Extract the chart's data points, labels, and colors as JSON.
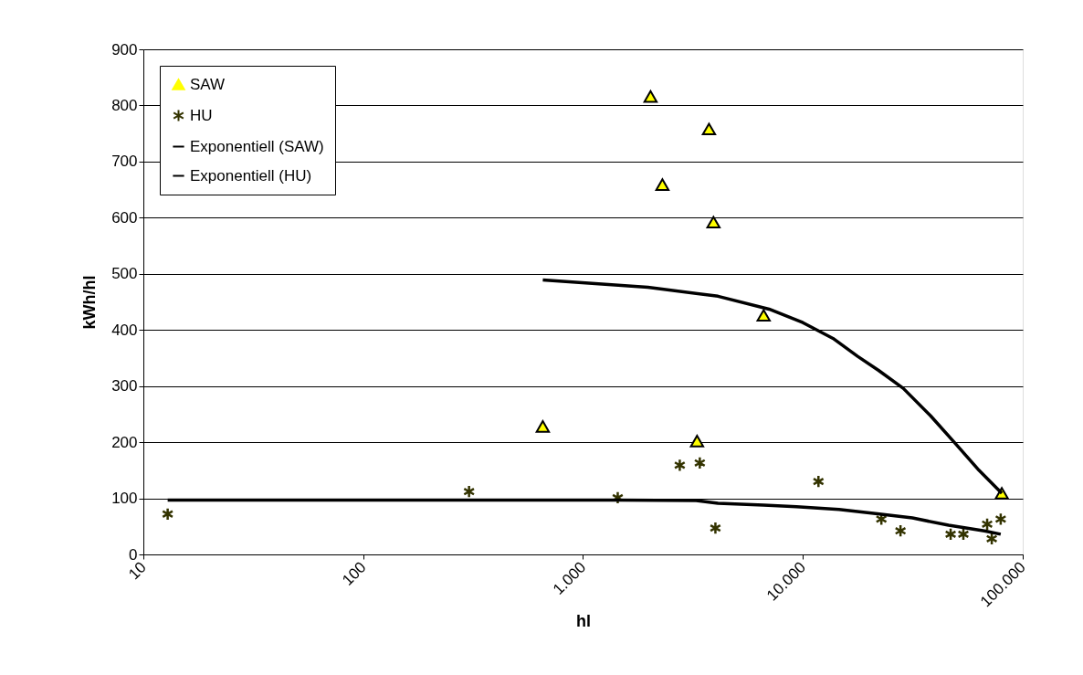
{
  "chart_data": {
    "type": "scatter",
    "xlabel": "hl",
    "ylabel": "kWh/hl",
    "log": "x",
    "xlim": [
      10,
      100000
    ],
    "ylim": [
      0,
      900
    ],
    "xticks": [
      10,
      100,
      {
        "value": 1000,
        "label": "1.000"
      },
      {
        "value": 10000,
        "label": "10.000"
      },
      {
        "value": 100000,
        "label": "100.000"
      }
    ],
    "yticks": [
      0,
      100,
      200,
      300,
      400,
      500,
      600,
      700,
      800,
      900
    ],
    "grid": "y",
    "legend": "top left",
    "series": [
      {
        "name": "SAW",
        "marker": "triangle",
        "color": "#ffff00",
        "x": [
          2028,
          3740,
          2296,
          3920,
          6630,
          656,
          3300,
          80300
        ],
        "values": [
          816,
          758,
          659,
          592,
          426,
          228,
          202,
          109
        ]
      },
      {
        "name": "HU",
        "marker": "cross",
        "color": "#333300",
        "x": [
          12.9,
          303,
          1438,
          2754,
          3397,
          4000,
          11770,
          22750,
          27800,
          47000,
          53700,
          68900,
          72300,
          79400
        ],
        "values": [
          72,
          112,
          101,
          159,
          163,
          47,
          130,
          63,
          42,
          36,
          36,
          54,
          28,
          63
        ]
      },
      {
        "name": "Exponentiell (SAW)",
        "type": "line",
        "marker": "none",
        "color": "#000000",
        "x": [
          656,
          1972,
          4110,
          7020,
          10000,
          13700,
          17740,
          22090,
          28600,
          38100,
          49300,
          63200,
          80300
        ],
        "values": [
          489,
          476,
          460,
          437,
          413,
          385,
          353,
          328,
          296,
          247,
          198,
          150,
          109
        ]
      },
      {
        "name": "Exponentiell (HU)",
        "type": "line",
        "marker": "none",
        "color": "#000000",
        "x": [
          12.9,
          303,
          1438,
          3270,
          4110,
          6630,
          9350,
          14600,
          21400,
          31500,
          46000,
          67000,
          79400
        ],
        "values": [
          97,
          97,
          97,
          96,
          91,
          88,
          85,
          80,
          73,
          65,
          52,
          42,
          36
        ]
      }
    ]
  }
}
